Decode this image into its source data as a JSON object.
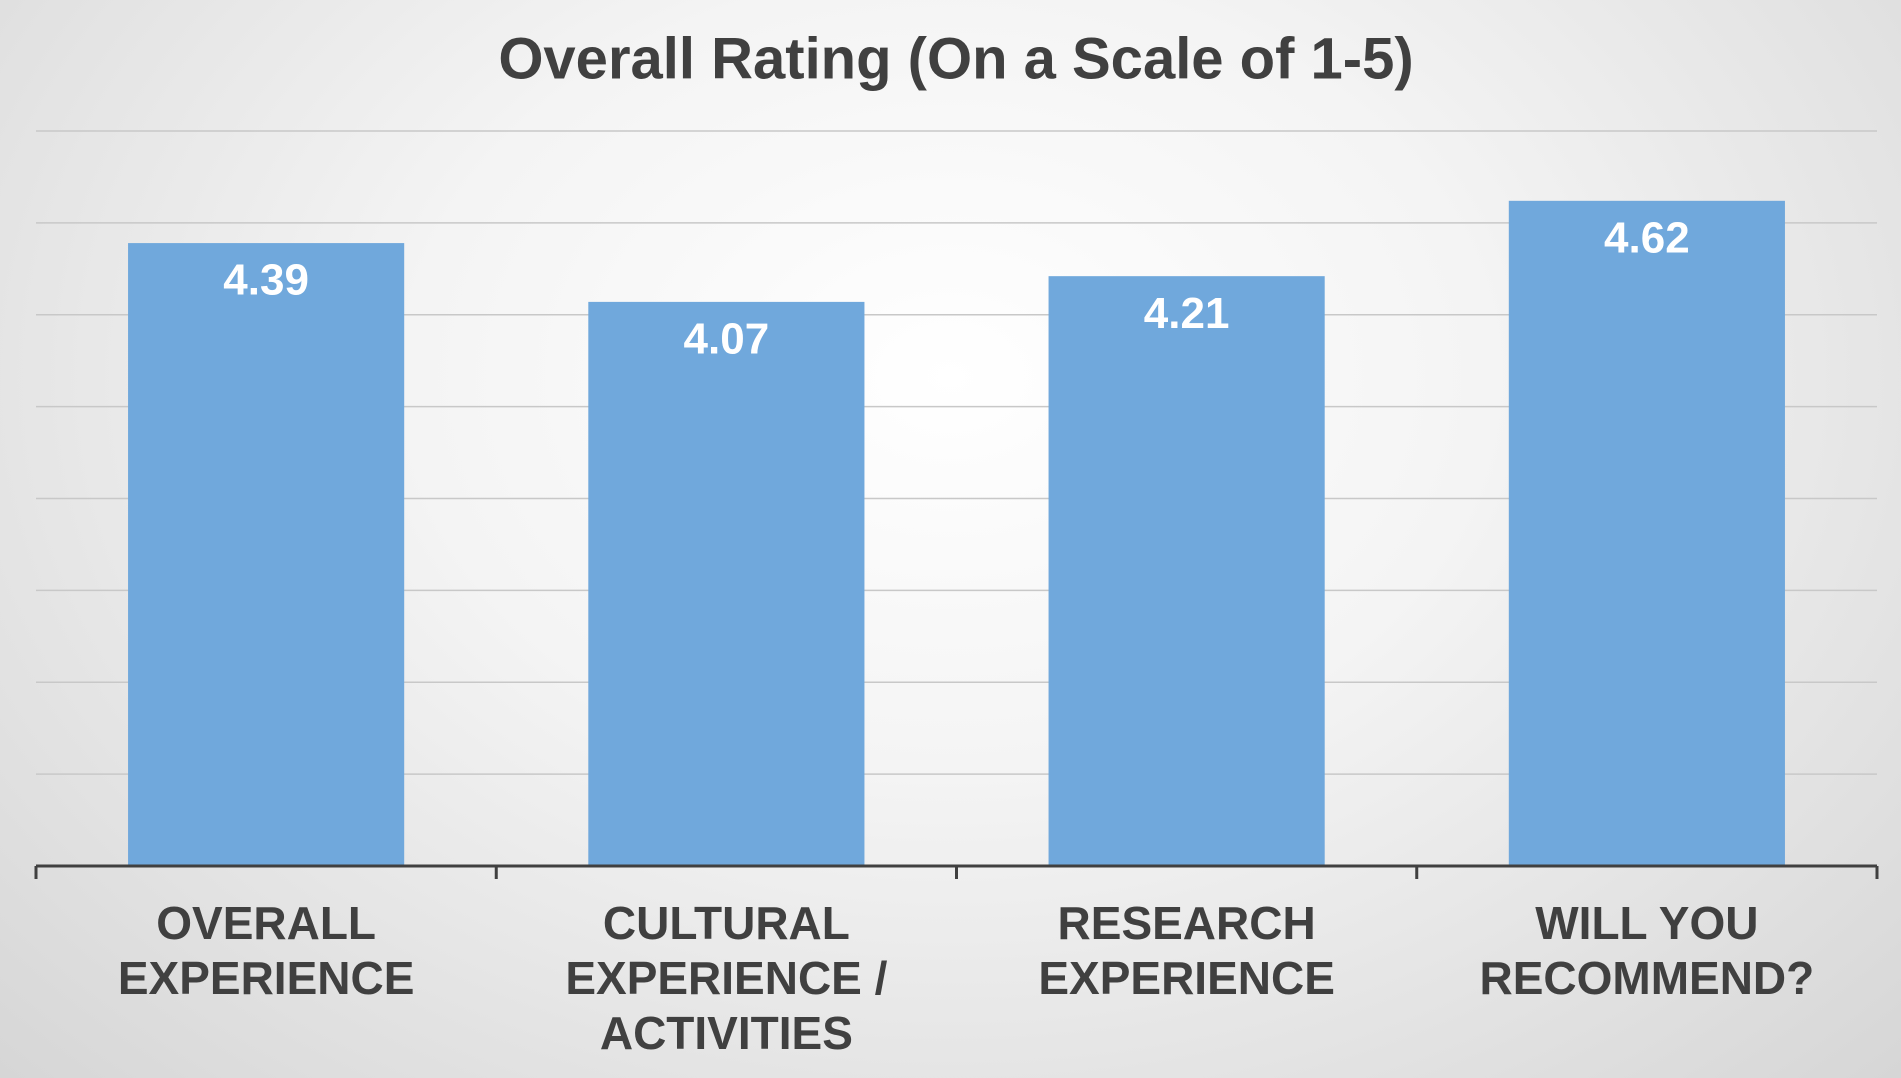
{
  "chart_data": {
    "type": "bar",
    "title": "Overall Rating (On a Scale of 1-5)",
    "categories": [
      "OVERALL\nEXPERIENCE",
      "CULTURAL\nEXPERIENCE /\nACTIVITIES",
      "RESEARCH\nEXPERIENCE",
      "WILL YOU\nRECOMMEND?"
    ],
    "values": [
      4.39,
      4.07,
      4.21,
      4.62
    ],
    "color": "#70a8dc",
    "ylim": [
      1,
      5
    ],
    "yticks": [
      1,
      1.5,
      2,
      2.5,
      3,
      3.5,
      4,
      4.5,
      5
    ],
    "grid": true
  }
}
